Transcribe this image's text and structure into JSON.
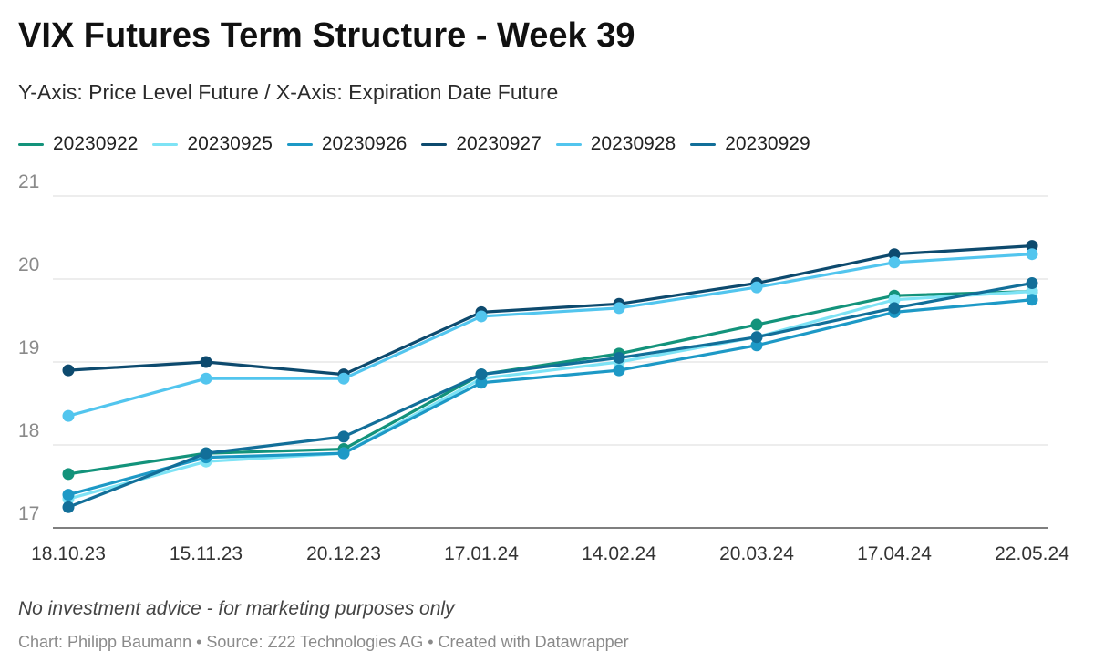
{
  "header": {
    "title": "VIX Futures Term Structure - Week 39",
    "subtitle": "Y-Axis: Price Level Future / X-Axis: Expiration Date Future"
  },
  "footer": {
    "note": "No investment advice - for marketing purposes only",
    "credits": "Chart: Philipp Baumann • Source: Z22 Technologies AG • Created with Datawrapper"
  },
  "chart_data": {
    "type": "line",
    "title": "VIX Futures Term Structure - Week 39",
    "subtitle": "Y-Axis: Price Level Future / X-Axis: Expiration Date Future",
    "categories": [
      "18.10.23",
      "15.11.23",
      "20.12.23",
      "17.01.24",
      "14.02.24",
      "20.03.24",
      "17.04.24",
      "22.05.24"
    ],
    "ylim": [
      17,
      21
    ],
    "yticks": [
      "17",
      "18",
      "19",
      "20",
      "21"
    ],
    "grid": true,
    "legend_position": "top-left",
    "series": [
      {
        "name": "20230922",
        "color": "#13937b",
        "values": [
          17.65,
          17.9,
          17.95,
          18.85,
          19.1,
          19.45,
          19.8,
          19.85
        ]
      },
      {
        "name": "20230925",
        "color": "#7ee3f5",
        "values": [
          17.35,
          17.8,
          17.9,
          18.8,
          19.0,
          19.3,
          19.75,
          19.85
        ]
      },
      {
        "name": "20230926",
        "color": "#1d99c6",
        "values": [
          17.4,
          17.85,
          17.9,
          18.75,
          18.9,
          19.2,
          19.6,
          19.75
        ]
      },
      {
        "name": "20230927",
        "color": "#0d4a6e",
        "values": [
          18.9,
          19.0,
          18.85,
          19.6,
          19.7,
          19.95,
          20.3,
          20.4
        ]
      },
      {
        "name": "20230928",
        "color": "#52c5ee",
        "values": [
          18.35,
          18.8,
          18.8,
          19.55,
          19.65,
          19.9,
          20.2,
          20.3
        ]
      },
      {
        "name": "20230929",
        "color": "#126f99",
        "values": [
          17.25,
          17.9,
          18.1,
          18.85,
          19.05,
          19.3,
          19.65,
          19.95
        ]
      }
    ]
  }
}
